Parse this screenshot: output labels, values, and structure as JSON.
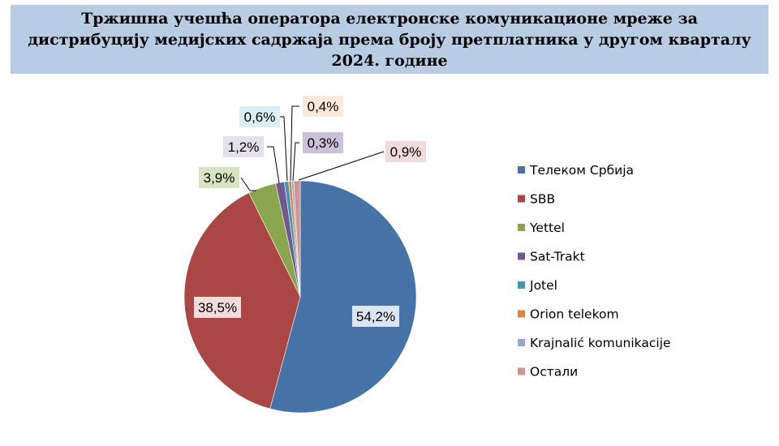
{
  "chart_data": {
    "type": "pie",
    "title": "Тржишна учешћа оператора електронске комуникационе мреже за дистрибуцију медијских садржаја према броју претплатника у другом кварталу 2024. године",
    "legend_position": "right",
    "slices": [
      {
        "name": "Телеком Србија",
        "value": 54.2,
        "label": "54,2%",
        "color": "#4572a7",
        "label_bg": "#dce6f2"
      },
      {
        "name": "SBB",
        "value": 38.5,
        "label": "38,5%",
        "color": "#aa4643",
        "label_bg": "#f2dcdb"
      },
      {
        "name": "Yettel",
        "value": 3.9,
        "label": "3,9%",
        "color": "#89a54e",
        "label_bg": "#d7e4bd"
      },
      {
        "name": "Sat-Trakt",
        "value": 1.2,
        "label": "1,2%",
        "color": "#71588f",
        "label_bg": "#e5e0ec"
      },
      {
        "name": "Jotel",
        "value": 0.6,
        "label": "0,6%",
        "color": "#4198af",
        "label_bg": "#dbeef4"
      },
      {
        "name": "Orion telekom",
        "value": 0.4,
        "label": "0,4%",
        "color": "#db843d",
        "label_bg": "#fde9d9"
      },
      {
        "name": "Krajnalić komunikacije",
        "value": 0.3,
        "label": "0,3%",
        "color": "#93a9cf",
        "label_bg": "#ccc1da"
      },
      {
        "name": "Остали",
        "value": 0.9,
        "label": "0,9%",
        "color": "#d19392",
        "label_bg": "#f2dcdb"
      }
    ]
  }
}
